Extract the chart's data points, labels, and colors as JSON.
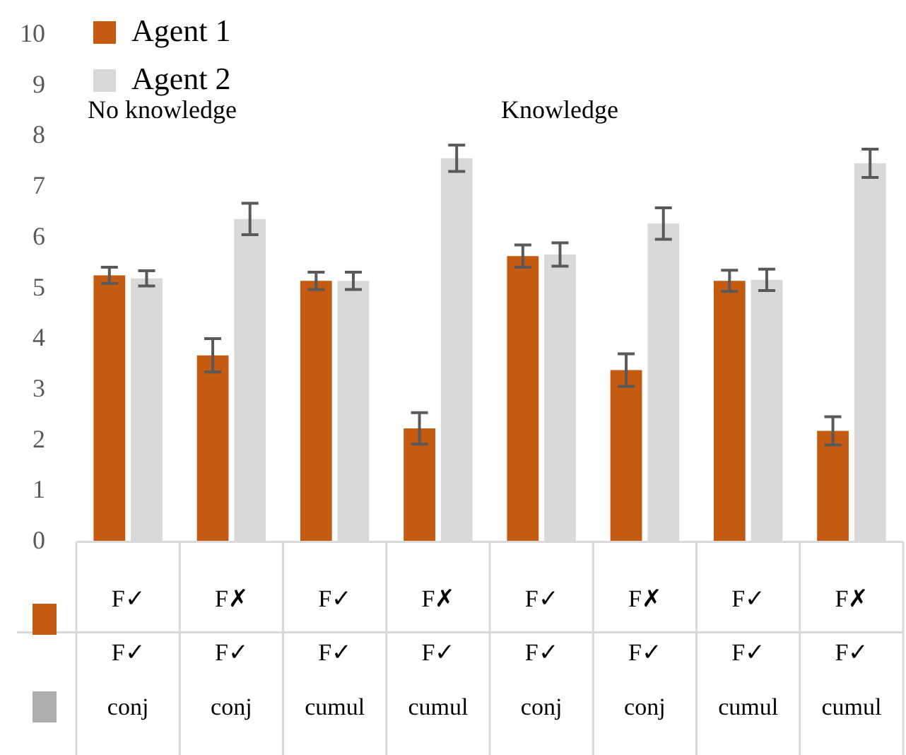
{
  "chart_data": {
    "type": "bar",
    "categories": [
      "F✓\nF✓\nconj",
      "F✗\nF✓\nconj",
      "F✓\nF✓\ncumul",
      "F✗\nF✓\ncumul",
      "F✓\nF✓\nconj",
      "F✗\nF✓\nconj",
      "F✓\nF✓\ncumul",
      "F✗\nF✓\ncumul"
    ],
    "series": [
      {
        "name": "Agent 1",
        "color": "#c55a11",
        "values": [
          5.26,
          3.68,
          5.15,
          2.24,
          5.64,
          3.39,
          5.15,
          2.19
        ],
        "errors": [
          0.16,
          0.33,
          0.17,
          0.31,
          0.22,
          0.32,
          0.21,
          0.28
        ]
      },
      {
        "name": "Agent 2",
        "color": "#d9d9d9",
        "values": [
          5.2,
          6.37,
          5.15,
          7.57,
          5.67,
          6.28,
          5.17,
          7.47
        ],
        "errors": [
          0.15,
          0.31,
          0.17,
          0.26,
          0.23,
          0.31,
          0.21,
          0.28
        ]
      }
    ],
    "annotations": [
      "No knowledge",
      "Knowledge"
    ],
    "ylim": [
      0,
      10
    ],
    "yticks": [
      0,
      1,
      2,
      3,
      4,
      5,
      6,
      7,
      8,
      9,
      10
    ],
    "grid": false,
    "legend": "top left"
  }
}
